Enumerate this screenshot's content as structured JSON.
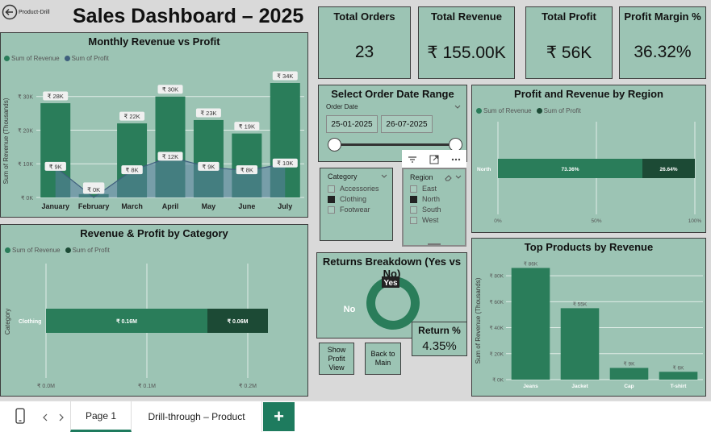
{
  "header": {
    "back_label": "Product-Drill",
    "title": "Sales Dashboard – 2025"
  },
  "kpis": [
    {
      "label": "Total Orders",
      "value": "23"
    },
    {
      "label": "Total Revenue",
      "value": "₹ 155.00K"
    },
    {
      "label": "Total Profit",
      "value": "₹ 56K"
    },
    {
      "label": "Profit Margin %",
      "value": "36.32%"
    }
  ],
  "colors": {
    "revenue": "#2a7d5a",
    "profit": "#1c4a35",
    "profit_area": "#5a7fa0",
    "panel": "#9cc4b4"
  },
  "legend": {
    "revenue": "Sum of Revenue",
    "profit": "Sum of Profit"
  },
  "monthly": {
    "title": "Monthly Revenue vs Profit",
    "ylabel": "Sum of Revenue (Thousands)",
    "chart_data": {
      "type": "bar",
      "categories": [
        "January",
        "February",
        "March",
        "April",
        "May",
        "June",
        "July"
      ],
      "series": [
        {
          "name": "Sum of Revenue",
          "values": [
            28,
            1,
            22,
            30,
            23,
            19,
            34
          ]
        },
        {
          "name": "Sum of Profit",
          "values": [
            9,
            0,
            8,
            12,
            9,
            8,
            10
          ]
        }
      ],
      "revenue_labels": [
        "₹ 28K",
        "₹ 1K",
        "₹ 22K",
        "₹ 30K",
        "₹ 23K",
        "₹ 19K",
        "₹ 34K"
      ],
      "profit_labels": [
        "₹ 9K",
        "₹ 0K",
        "₹ 8K",
        "₹ 12K",
        "₹ 9K",
        "₹ 8K",
        "₹ 10K"
      ],
      "yticks": [
        0,
        10,
        20,
        30
      ],
      "ytick_labels": [
        "₹ 0K",
        "₹ 10K",
        "₹ 20K",
        "₹ 30K"
      ],
      "ylim": [
        0,
        34
      ]
    }
  },
  "category": {
    "title": "Revenue & Profit by Category",
    "ylabel": "Category",
    "chart_data": {
      "type": "bar",
      "categories": [
        "Clothing"
      ],
      "series": [
        {
          "name": "Sum of Revenue",
          "values": [
            0.16
          ]
        },
        {
          "name": "Sum of Profit",
          "values": [
            0.06
          ]
        }
      ],
      "value_labels": [
        "₹ 0.16M",
        "₹ 0.06M"
      ],
      "xticks": [
        0,
        0.1,
        0.2
      ],
      "xtick_labels": [
        "₹ 0.0M",
        "₹ 0.1M",
        "₹ 0.2M"
      ],
      "xlim": [
        0,
        0.2
      ]
    }
  },
  "date_range": {
    "title": "Select Order Date Range",
    "field_label": "Order Date",
    "start": "25-01-2025",
    "end": "26-07-2025"
  },
  "category_slicer": {
    "title": "Category",
    "items": [
      {
        "label": "Accessories",
        "checked": false
      },
      {
        "label": "Clothing",
        "checked": true
      },
      {
        "label": "Footwear",
        "checked": false
      }
    ]
  },
  "region_slicer": {
    "title": "Region",
    "items": [
      {
        "label": "East",
        "checked": false
      },
      {
        "label": "North",
        "checked": true
      },
      {
        "label": "South",
        "checked": false
      },
      {
        "label": "West",
        "checked": false
      }
    ]
  },
  "returns": {
    "title": "Returns Breakdown (Yes vs No)",
    "chart_data": {
      "type": "pie",
      "categories": [
        "Yes",
        "No"
      ],
      "values": [
        4.35,
        95.65
      ]
    },
    "return_pct_label": "Return %",
    "return_pct_value": "4.35%"
  },
  "buttons": {
    "show_profit": "Show Profit View",
    "back_main": "Back to Main"
  },
  "region_chart": {
    "title": "Profit and Revenue by Region",
    "chart_data": {
      "type": "bar",
      "categories": [
        "North"
      ],
      "series": [
        {
          "name": "Sum of Revenue",
          "values": [
            73.36
          ]
        },
        {
          "name": "Sum of Profit",
          "values": [
            26.64
          ]
        }
      ],
      "value_labels": [
        "73.36%",
        "26.64%"
      ],
      "xticks": [
        0,
        50,
        100
      ],
      "xtick_labels": [
        "0%",
        "50%",
        "100%"
      ],
      "xlim": [
        0,
        100
      ]
    }
  },
  "products": {
    "title": "Top Products by Revenue",
    "ylabel": "Sum of Revenue (Thousands)",
    "chart_data": {
      "type": "bar",
      "categories": [
        "Jeans",
        "Jacket",
        "Cap",
        "T-shirt"
      ],
      "values": [
        86,
        55,
        9,
        6
      ],
      "value_labels": [
        "₹ 86K",
        "₹ 55K",
        "₹ 9K",
        "₹ 6K"
      ],
      "yticks": [
        0,
        20,
        40,
        60,
        80
      ],
      "ytick_labels": [
        "₹ 0K",
        "₹ 20K",
        "₹ 40K",
        "₹ 60K",
        "₹ 80K"
      ],
      "ylim": [
        0,
        90
      ]
    }
  },
  "tabs": {
    "page1": "Page 1",
    "drill": "Drill-through – Product",
    "add": "+"
  },
  "icons": {
    "back": "back-arrow-icon",
    "filter": "filter-icon",
    "focus": "focus-mode-icon",
    "more": "more-options-icon",
    "eraser": "eraser-icon",
    "mobile": "mobile-layout-icon"
  }
}
